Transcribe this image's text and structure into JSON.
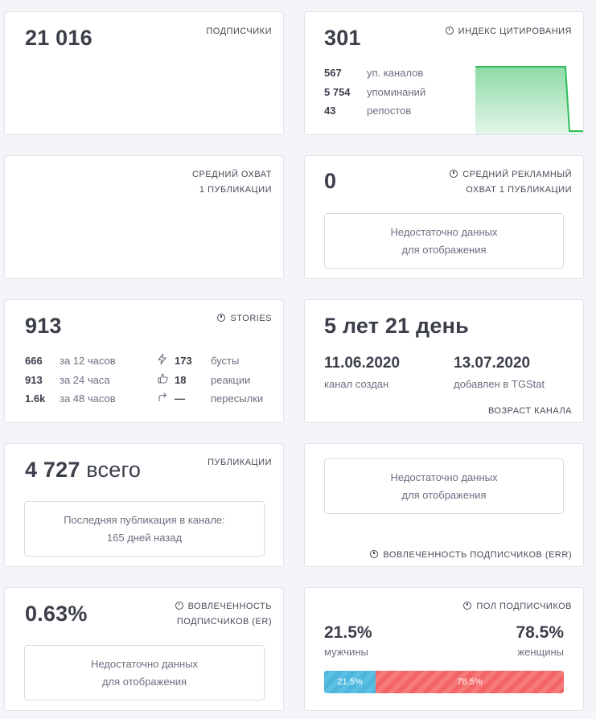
{
  "subscribers": {
    "value": "21 016",
    "label": "ПОДПИСЧИКИ"
  },
  "citation": {
    "value": "301",
    "label": "ИНДЕКС ЦИТИРОВАНИЯ",
    "rows": [
      {
        "num": "567",
        "text": "уп. каналов"
      },
      {
        "num": "5 754",
        "text": "упоминаний"
      },
      {
        "num": "43",
        "text": "репостов"
      }
    ],
    "sparkline_color": "#2fbd5b"
  },
  "avg_reach": {
    "label_line1": "СРЕДНИЙ ОХВАТ",
    "label_line2": "1 ПУБЛИКАЦИИ"
  },
  "ad_reach": {
    "value": "0",
    "label_line1": "СРЕДНИЙ РЕКЛАМНЫЙ",
    "label_line2": "ОХВАТ 1 ПУБЛИКАЦИИ",
    "nodata_line1": "Недостаточно данных",
    "nodata_line2": "для отображения"
  },
  "stories": {
    "value": "913",
    "label": "STORIES",
    "left": [
      {
        "num": "666",
        "text": "за 12 часов"
      },
      {
        "num": "913",
        "text": "за 24 часа"
      },
      {
        "num": "1.6k",
        "text": "за 48 часов"
      }
    ],
    "right": [
      {
        "icon": "lightning-icon",
        "num": "173",
        "text": "бусты"
      },
      {
        "icon": "thumbs-up-icon",
        "num": "18",
        "text": "реакции"
      },
      {
        "icon": "forward-arrow-icon",
        "num": "—",
        "text": "пересылки"
      }
    ]
  },
  "age": {
    "value": "5 лет 21 день",
    "created_date": "11.06.2020",
    "created_label": "канал создан",
    "added_date": "13.07.2020",
    "added_label": "добавлен в TGStat",
    "label": "ВОЗРАСТ КАНАЛА"
  },
  "publications": {
    "value": "4 727",
    "suffix": "всего",
    "label": "ПУБЛИКАЦИИ",
    "last_line1": "Последняя публикация в канале:",
    "last_line2": "165 дней назад"
  },
  "err": {
    "nodata_line1": "Недостаточно данных",
    "nodata_line2": "для отображения",
    "label": "ВОВЛЕЧЕННОСТЬ ПОДПИСЧИКОВ (ERR)"
  },
  "er": {
    "value": "0.63%",
    "label_line1": "ВОВЛЕЧЕННОСТЬ",
    "label_line2": "ПОДПИСЧИКОВ (ER)",
    "nodata_line1": "Недостаточно данных",
    "nodata_line2": "для отображения"
  },
  "gender": {
    "label": "ПОЛ ПОДПИСЧИКОВ",
    "male_pct": "21.5%",
    "male_label": "мужчины",
    "female_pct": "78.5%",
    "female_label": "женщины",
    "male_fraction": 0.215,
    "female_fraction": 0.785,
    "male_color": "#4db6dc",
    "female_color": "#f36464"
  }
}
